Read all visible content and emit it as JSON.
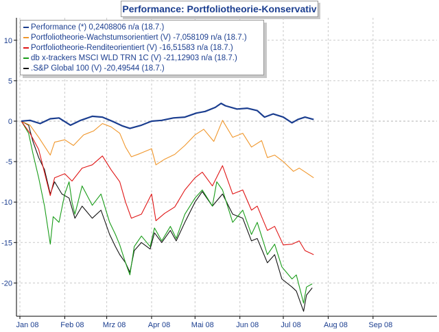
{
  "chart_data": {
    "type": "line",
    "title": "Performance: Portfoliotheorie-Konservativ",
    "xlabel": "",
    "ylabel": "",
    "ylim": [
      -24,
      13
    ],
    "yticks": [
      10,
      5,
      0,
      -5,
      -10,
      -15,
      -20
    ],
    "x_range": [
      "2008-01-01",
      "2008-09-30"
    ],
    "xtick_labels": [
      {
        "date": "2008-01-01",
        "label": "Jan 08"
      },
      {
        "date": "2008-02-01",
        "label": "Feb 08"
      },
      {
        "date": "2008-03-01",
        "label": "Mrz 08"
      },
      {
        "date": "2008-04-01",
        "label": "Apr 08"
      },
      {
        "date": "2008-05-01",
        "label": "Mai 08"
      },
      {
        "date": "2008-06-01",
        "label": "Jun 08"
      },
      {
        "date": "2008-07-01",
        "label": "Jul 08"
      },
      {
        "date": "2008-08-01",
        "label": "Aug 08"
      },
      {
        "date": "2008-09-01",
        "label": "Sep 08"
      }
    ],
    "grid": true,
    "legend_position": "top-left",
    "series": [
      {
        "name": "Performance (*) 0,2408806 n/a (18.7.)",
        "color": "#1a3d8f",
        "points": [
          [
            "2008-01-02",
            0
          ],
          [
            "2008-01-08",
            0.1
          ],
          [
            "2008-01-15",
            -0.3
          ],
          [
            "2008-01-22",
            0.3
          ],
          [
            "2008-01-28",
            0.4
          ],
          [
            "2008-02-05",
            -0.5
          ],
          [
            "2008-02-12",
            0.1
          ],
          [
            "2008-02-20",
            0.6
          ],
          [
            "2008-02-27",
            0.5
          ],
          [
            "2008-03-06",
            -0.1
          ],
          [
            "2008-03-12",
            -0.6
          ],
          [
            "2008-03-17",
            -0.9
          ],
          [
            "2008-03-25",
            -0.5
          ],
          [
            "2008-04-01",
            0
          ],
          [
            "2008-04-08",
            0.1
          ],
          [
            "2008-04-16",
            0.4
          ],
          [
            "2008-04-24",
            0.5
          ],
          [
            "2008-05-02",
            1.0
          ],
          [
            "2008-05-08",
            1.2
          ],
          [
            "2008-05-15",
            1.7
          ],
          [
            "2008-05-19",
            2.2
          ],
          [
            "2008-05-22",
            1.9
          ],
          [
            "2008-05-30",
            1.5
          ],
          [
            "2008-06-06",
            1.6
          ],
          [
            "2008-06-13",
            1.3
          ],
          [
            "2008-06-18",
            0.5
          ],
          [
            "2008-06-24",
            0.9
          ],
          [
            "2008-07-01",
            0.5
          ],
          [
            "2008-07-07",
            -0.2
          ],
          [
            "2008-07-11",
            0.2
          ],
          [
            "2008-07-16",
            0.5
          ],
          [
            "2008-07-22",
            0.2
          ]
        ]
      },
      {
        "name": "Portfoliotheorie-Wachstumsorientiert (V) -7,058109 n/a (18.7.)",
        "color": "#f0962a",
        "points": [
          [
            "2008-01-02",
            0
          ],
          [
            "2008-01-08",
            -0.5
          ],
          [
            "2008-01-14",
            -2.0
          ],
          [
            "2008-01-22",
            -4.2
          ],
          [
            "2008-01-25",
            -2.6
          ],
          [
            "2008-02-01",
            -2.3
          ],
          [
            "2008-02-07",
            -3.0
          ],
          [
            "2008-02-14",
            -1.7
          ],
          [
            "2008-02-21",
            -1.2
          ],
          [
            "2008-02-27",
            -0.3
          ],
          [
            "2008-03-04",
            -0.7
          ],
          [
            "2008-03-10",
            -1.5
          ],
          [
            "2008-03-14",
            -3.2
          ],
          [
            "2008-03-18",
            -4.4
          ],
          [
            "2008-03-24",
            -4.0
          ],
          [
            "2008-04-01",
            -3.4
          ],
          [
            "2008-04-04",
            -5.4
          ],
          [
            "2008-04-10",
            -4.7
          ],
          [
            "2008-04-17",
            -4.1
          ],
          [
            "2008-04-24",
            -3.0
          ],
          [
            "2008-05-01",
            -1.7
          ],
          [
            "2008-05-07",
            -1.0
          ],
          [
            "2008-05-14",
            -2.5
          ],
          [
            "2008-05-20",
            0.1
          ],
          [
            "2008-05-27",
            -2.0
          ],
          [
            "2008-06-03",
            -1.5
          ],
          [
            "2008-06-09",
            -3.2
          ],
          [
            "2008-06-16",
            -2.4
          ],
          [
            "2008-06-20",
            -4.5
          ],
          [
            "2008-06-25",
            -4.2
          ],
          [
            "2008-07-01",
            -5.0
          ],
          [
            "2008-07-08",
            -6.2
          ],
          [
            "2008-07-12",
            -5.8
          ],
          [
            "2008-07-17",
            -6.4
          ],
          [
            "2008-07-22",
            -7.0
          ]
        ]
      },
      {
        "name": "Portfoliotheorie-Renditeorientiert (V) -16,51583 n/a (18.7.)",
        "color": "#e01414",
        "points": [
          [
            "2008-01-02",
            0
          ],
          [
            "2008-01-08",
            -1.5
          ],
          [
            "2008-01-14",
            -3.5
          ],
          [
            "2008-01-22",
            -9.2
          ],
          [
            "2008-01-25",
            -7.0
          ],
          [
            "2008-02-01",
            -6.5
          ],
          [
            "2008-02-06",
            -7.4
          ],
          [
            "2008-02-13",
            -5.8
          ],
          [
            "2008-02-20",
            -5.4
          ],
          [
            "2008-02-27",
            -4.3
          ],
          [
            "2008-03-04",
            -6.0
          ],
          [
            "2008-03-10",
            -7.5
          ],
          [
            "2008-03-14",
            -10.0
          ],
          [
            "2008-03-18",
            -12.0
          ],
          [
            "2008-03-25",
            -11.5
          ],
          [
            "2008-04-01",
            -9.0
          ],
          [
            "2008-04-04",
            -12.3
          ],
          [
            "2008-04-10",
            -11.4
          ],
          [
            "2008-04-17",
            -10.6
          ],
          [
            "2008-04-24",
            -8.5
          ],
          [
            "2008-05-01",
            -7.0
          ],
          [
            "2008-05-06",
            -6.3
          ],
          [
            "2008-05-13",
            -8.0
          ],
          [
            "2008-05-20",
            -5.5
          ],
          [
            "2008-05-27",
            -9.0
          ],
          [
            "2008-06-03",
            -8.5
          ],
          [
            "2008-06-09",
            -11.0
          ],
          [
            "2008-06-13",
            -10.5
          ],
          [
            "2008-06-20",
            -13.5
          ],
          [
            "2008-06-25",
            -13.0
          ],
          [
            "2008-07-01",
            -15.3
          ],
          [
            "2008-07-07",
            -15.2
          ],
          [
            "2008-07-12",
            -14.8
          ],
          [
            "2008-07-16",
            -16.0
          ],
          [
            "2008-07-22",
            -16.5
          ]
        ]
      },
      {
        "name": "db x-trackers MSCI WLD TRN 1C (V) -21,12903 n/a (18.7.)",
        "color": "#179b17",
        "points": [
          [
            "2008-01-02",
            0
          ],
          [
            "2008-01-07",
            -1.5
          ],
          [
            "2008-01-10",
            -4.0
          ],
          [
            "2008-01-14",
            -7.0
          ],
          [
            "2008-01-18",
            -10.5
          ],
          [
            "2008-01-22",
            -15.2
          ],
          [
            "2008-01-24",
            -11.8
          ],
          [
            "2008-01-28",
            -12.5
          ],
          [
            "2008-02-01",
            -9.0
          ],
          [
            "2008-02-04",
            -7.5
          ],
          [
            "2008-02-06",
            -10.0
          ],
          [
            "2008-02-08",
            -11.5
          ],
          [
            "2008-02-13",
            -8.0
          ],
          [
            "2008-02-20",
            -10.4
          ],
          [
            "2008-02-26",
            -9.0
          ],
          [
            "2008-03-03",
            -12.5
          ],
          [
            "2008-03-07",
            -14.0
          ],
          [
            "2008-03-10",
            -15.3
          ],
          [
            "2008-03-14",
            -17.5
          ],
          [
            "2008-03-17",
            -19.0
          ],
          [
            "2008-03-20",
            -15.5
          ],
          [
            "2008-03-25",
            -14.2
          ],
          [
            "2008-03-31",
            -15.5
          ],
          [
            "2008-04-03",
            -13.2
          ],
          [
            "2008-04-08",
            -14.8
          ],
          [
            "2008-04-14",
            -13.0
          ],
          [
            "2008-04-18",
            -14.5
          ],
          [
            "2008-04-24",
            -11.5
          ],
          [
            "2008-05-01",
            -9.5
          ],
          [
            "2008-05-06",
            -8.5
          ],
          [
            "2008-05-13",
            -10.5
          ],
          [
            "2008-05-16",
            -7.5
          ],
          [
            "2008-05-20",
            -8.5
          ],
          [
            "2008-05-27",
            -12.5
          ],
          [
            "2008-06-03",
            -11.0
          ],
          [
            "2008-06-09",
            -14.0
          ],
          [
            "2008-06-13",
            -12.5
          ],
          [
            "2008-06-20",
            -16.5
          ],
          [
            "2008-06-25",
            -15.2
          ],
          [
            "2008-06-30",
            -18.0
          ],
          [
            "2008-07-07",
            -19.5
          ],
          [
            "2008-07-10",
            -19.0
          ],
          [
            "2008-07-15",
            -22.5
          ],
          [
            "2008-07-17",
            -20.5
          ],
          [
            "2008-07-21",
            -20.1
          ]
        ]
      },
      {
        "name": ".S&P Global 100 (V) -20,49544 (18.7.)",
        "color": "#111111",
        "points": [
          [
            "2008-01-02",
            0
          ],
          [
            "2008-01-07",
            -0.5
          ],
          [
            "2008-01-10",
            -2.5
          ],
          [
            "2008-01-14",
            -4.5
          ],
          [
            "2008-01-18",
            -6.0
          ],
          [
            "2008-01-22",
            -9.0
          ],
          [
            "2008-01-25",
            -7.5
          ],
          [
            "2008-01-30",
            -9.0
          ],
          [
            "2008-02-04",
            -9.5
          ],
          [
            "2008-02-08",
            -12.0
          ],
          [
            "2008-02-13",
            -10.5
          ],
          [
            "2008-02-20",
            -12.0
          ],
          [
            "2008-02-26",
            -11.0
          ],
          [
            "2008-03-03",
            -14.0
          ],
          [
            "2008-03-07",
            -15.5
          ],
          [
            "2008-03-10",
            -16.5
          ],
          [
            "2008-03-14",
            -17.5
          ],
          [
            "2008-03-17",
            -18.7
          ],
          [
            "2008-03-20",
            -16.0
          ],
          [
            "2008-03-25",
            -15.0
          ],
          [
            "2008-03-31",
            -15.8
          ],
          [
            "2008-04-03",
            -13.8
          ],
          [
            "2008-04-08",
            -15.0
          ],
          [
            "2008-04-14",
            -13.5
          ],
          [
            "2008-04-18",
            -14.8
          ],
          [
            "2008-04-24",
            -12.5
          ],
          [
            "2008-05-01",
            -10.0
          ],
          [
            "2008-05-06",
            -8.7
          ],
          [
            "2008-05-13",
            -10.5
          ],
          [
            "2008-05-20",
            -9.0
          ],
          [
            "2008-05-27",
            -11.5
          ],
          [
            "2008-06-03",
            -12.0
          ],
          [
            "2008-06-09",
            -14.8
          ],
          [
            "2008-06-13",
            -14.5
          ],
          [
            "2008-06-20",
            -17.5
          ],
          [
            "2008-06-25",
            -16.5
          ],
          [
            "2008-06-30",
            -19.5
          ],
          [
            "2008-07-07",
            -20.5
          ],
          [
            "2008-07-10",
            -21.0
          ],
          [
            "2008-07-15",
            -23.5
          ],
          [
            "2008-07-17",
            -21.5
          ],
          [
            "2008-07-21",
            -20.6
          ]
        ]
      }
    ]
  }
}
